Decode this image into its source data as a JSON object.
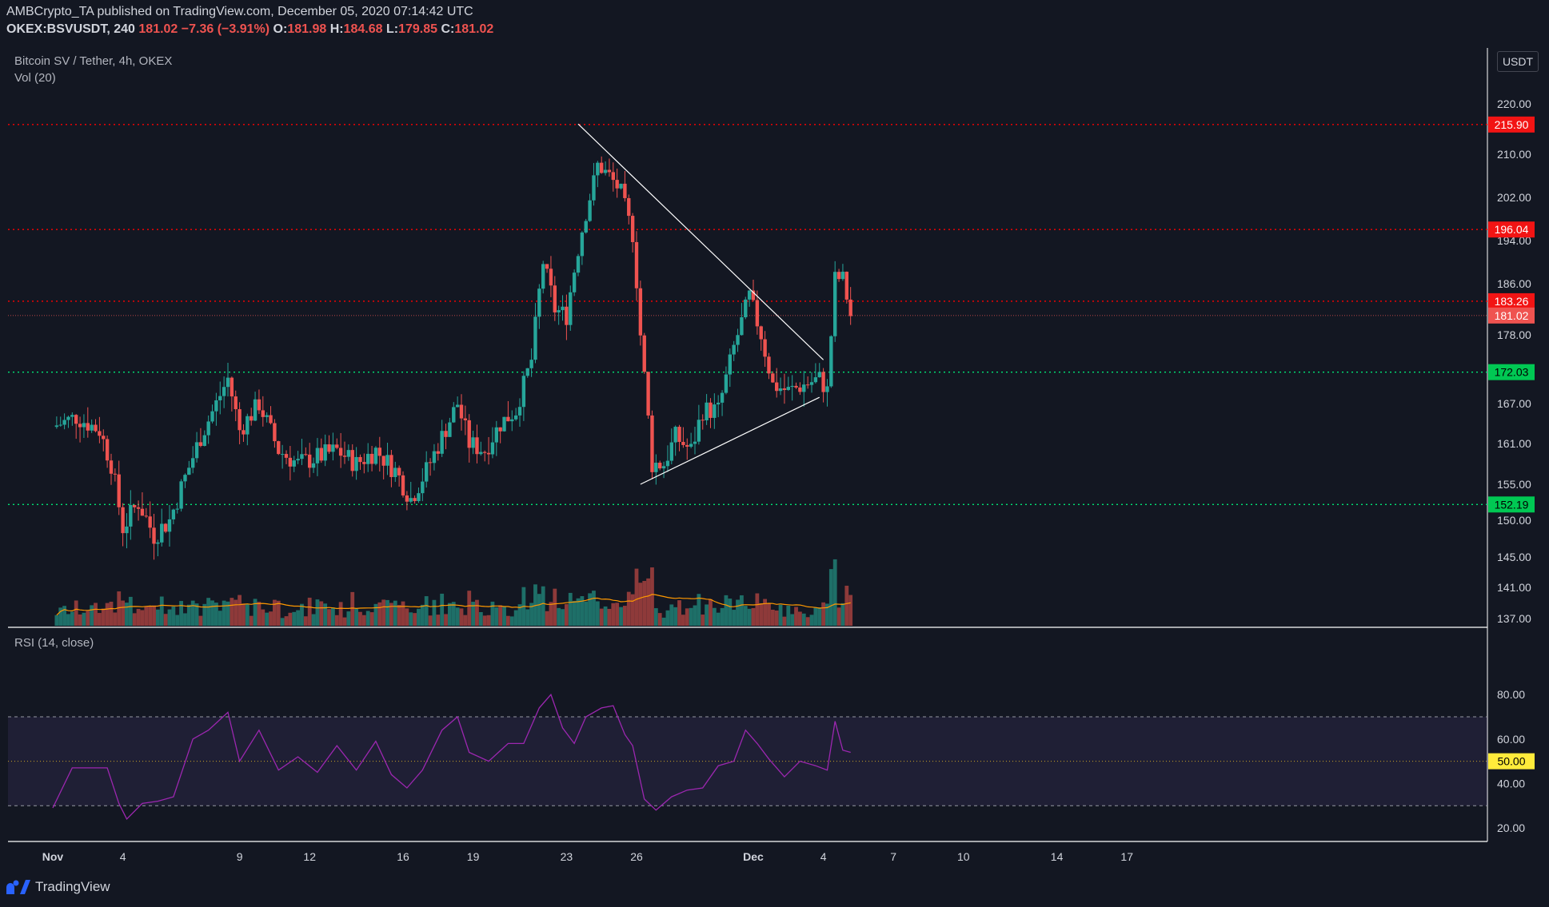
{
  "header": {
    "publisher_line": "AMBCrypto_TA published on TradingView.com, December 05, 2020 07:14:42 UTC",
    "symbol": "OKEX:BSVUSDT, 240",
    "last": "181.02",
    "change": "−7.36 (−3.91%)",
    "o_label": "O:",
    "o": "181.98",
    "h_label": "H:",
    "h": "184.68",
    "l_label": "L:",
    "l": "179.85",
    "c_label": "C:",
    "c": "181.02"
  },
  "legend": {
    "main": "Bitcoin SV / Tether, 4h, OKEX",
    "vol": "Vol (20)",
    "rsi": "RSI (14, close)"
  },
  "currency": "USDT",
  "footer": {
    "brand": "TradingView"
  },
  "colors": {
    "background": "#131722",
    "up": "#26a69a",
    "down": "#ef5350",
    "resistance": "#ff0000",
    "support": "#00e676",
    "rsi_line": "#9c27b0",
    "vol_ma": "#ff9800"
  },
  "chart_data": {
    "type": "candlestick",
    "x_tick_labels": [
      "Nov",
      "4",
      "9",
      "12",
      "16",
      "19",
      "23",
      "26",
      "Dec",
      "4",
      "7",
      "10",
      "14",
      "17"
    ],
    "x_tick_dates": [
      "2020-11-01",
      "2020-11-04",
      "2020-11-09",
      "2020-11-12",
      "2020-11-16",
      "2020-11-19",
      "2020-11-23",
      "2020-11-26",
      "2020-12-01",
      "2020-12-04",
      "2020-12-07",
      "2020-12-10",
      "2020-12-14",
      "2020-12-17"
    ],
    "price_ticks": [
      "220.00",
      "210.00",
      "202.00",
      "194.00",
      "186.00",
      "178.00",
      "167.00",
      "161.00",
      "155.00",
      "150.00",
      "145.00",
      "141.00",
      "137.00"
    ],
    "price_tick_values": [
      220,
      210,
      202,
      194,
      186,
      178,
      167,
      161,
      155,
      150,
      145,
      141,
      137
    ],
    "horizontal_levels": [
      {
        "label": "215.90",
        "value": 215.9,
        "kind": "resistance"
      },
      {
        "label": "196.04",
        "value": 196.04,
        "kind": "resistance"
      },
      {
        "label": "183.26",
        "value": 183.26,
        "kind": "resistance"
      },
      {
        "label": "181.02",
        "value": 181.02,
        "kind": "last"
      },
      {
        "label": "172.03",
        "value": 172.03,
        "kind": "support"
      },
      {
        "label": "152.19",
        "value": 152.19,
        "kind": "support"
      }
    ],
    "trendlines": [
      {
        "from": [
          "2020-11-23T12:00",
          216
        ],
        "to": [
          "2020-12-04T00:00",
          174
        ]
      },
      {
        "from": [
          "2020-11-26T04:00",
          155
        ],
        "to": [
          "2020-12-03T20:00",
          168
        ]
      }
    ],
    "close_path": [
      [
        "2020-11-01T00:00",
        163.5
      ],
      [
        "2020-11-02T00:00",
        165.0
      ],
      [
        "2020-11-03T00:00",
        163.0
      ],
      [
        "2020-11-03T12:00",
        158.0
      ],
      [
        "2020-11-04T00:00",
        149.0
      ],
      [
        "2020-11-04T16:00",
        152.5
      ],
      [
        "2020-11-05T08:00",
        148.0
      ],
      [
        "2020-11-06T00:00",
        150.0
      ],
      [
        "2020-11-06T16:00",
        156.0
      ],
      [
        "2020-11-07T08:00",
        162.0
      ],
      [
        "2020-11-08T00:00",
        167.0
      ],
      [
        "2020-11-08T12:00",
        171.0
      ],
      [
        "2020-11-09T00:00",
        163.0
      ],
      [
        "2020-11-09T20:00",
        167.0
      ],
      [
        "2020-11-10T16:00",
        160.0
      ],
      [
        "2020-11-11T12:00",
        158.0
      ],
      [
        "2020-11-12T08:00",
        159.0
      ],
      [
        "2020-11-13T04:00",
        160.0
      ],
      [
        "2020-11-14T00:00",
        158.0
      ],
      [
        "2020-11-14T20:00",
        160.0
      ],
      [
        "2020-11-15T16:00",
        157.0
      ],
      [
        "2020-11-16T08:00",
        153.0
      ],
      [
        "2020-11-17T00:00",
        157.0
      ],
      [
        "2020-11-17T16:00",
        162.0
      ],
      [
        "2020-11-18T08:00",
        167.0
      ],
      [
        "2020-11-18T20:00",
        161.0
      ],
      [
        "2020-11-19T12:00",
        160.0
      ],
      [
        "2020-11-20T04:00",
        164.0
      ],
      [
        "2020-11-20T20:00",
        166.0
      ],
      [
        "2020-11-21T12:00",
        174.0
      ],
      [
        "2020-11-22T00:00",
        190.0
      ],
      [
        "2020-11-22T12:00",
        182.0
      ],
      [
        "2020-11-23T00:00",
        181.0
      ],
      [
        "2020-11-23T16:00",
        196.0
      ],
      [
        "2020-11-24T08:00",
        208.0
      ],
      [
        "2020-11-24T20:00",
        206.0
      ],
      [
        "2020-11-25T08:00",
        203.0
      ],
      [
        "2020-11-25T20:00",
        195.0
      ],
      [
        "2020-11-26T04:00",
        178.0
      ],
      [
        "2020-11-26T16:00",
        158.0
      ],
      [
        "2020-11-27T04:00",
        158.0
      ],
      [
        "2020-11-27T16:00",
        162.0
      ],
      [
        "2020-11-28T08:00",
        160.0
      ],
      [
        "2020-11-28T20:00",
        166.0
      ],
      [
        "2020-11-29T12:00",
        166.0
      ],
      [
        "2020-11-30T04:00",
        176.0
      ],
      [
        "2020-11-30T20:00",
        184.0
      ],
      [
        "2020-12-01T08:00",
        178.0
      ],
      [
        "2020-12-01T20:00",
        170.0
      ],
      [
        "2020-12-02T12:00",
        169.0
      ],
      [
        "2020-12-03T04:00",
        170.0
      ],
      [
        "2020-12-03T20:00",
        171.0
      ],
      [
        "2020-12-04T04:00",
        169.0
      ],
      [
        "2020-12-04T12:00",
        187.0
      ],
      [
        "2020-12-04T20:00",
        187.0
      ],
      [
        "2020-12-05T04:00",
        181.0
      ]
    ],
    "rsi": {
      "ticks": [
        "80.00",
        "60.00",
        "40.00",
        "20.00"
      ],
      "tick_values": [
        80,
        60,
        40,
        20
      ],
      "upper_band": 70,
      "lower_band": 30,
      "midline_label": "50.00",
      "midline_value": 50,
      "path": [
        [
          "2020-11-01T00:00",
          31
        ],
        [
          "2020-11-01T20:00",
          45
        ],
        [
          "2020-11-02T16:00",
          49
        ],
        [
          "2020-11-03T08:00",
          45
        ],
        [
          "2020-11-03T20:00",
          33
        ],
        [
          "2020-11-04T04:00",
          22
        ],
        [
          "2020-11-04T20:00",
          33
        ],
        [
          "2020-11-05T12:00",
          30
        ],
        [
          "2020-11-06T04:00",
          36
        ],
        [
          "2020-11-07T00:00",
          58
        ],
        [
          "2020-11-07T16:00",
          66
        ],
        [
          "2020-11-08T12:00",
          70
        ],
        [
          "2020-11-09T00:00",
          52
        ],
        [
          "2020-11-09T20:00",
          62
        ],
        [
          "2020-11-10T16:00",
          48
        ],
        [
          "2020-11-11T12:00",
          50
        ],
        [
          "2020-11-12T08:00",
          47
        ],
        [
          "2020-11-13T04:00",
          55
        ],
        [
          "2020-11-14T00:00",
          48
        ],
        [
          "2020-11-14T20:00",
          57
        ],
        [
          "2020-11-15T12:00",
          46
        ],
        [
          "2020-11-16T04:00",
          36
        ],
        [
          "2020-11-16T20:00",
          48
        ],
        [
          "2020-11-17T16:00",
          62
        ],
        [
          "2020-11-18T08:00",
          72
        ],
        [
          "2020-11-18T20:00",
          52
        ],
        [
          "2020-11-19T16:00",
          52
        ],
        [
          "2020-11-20T12:00",
          56
        ],
        [
          "2020-11-21T04:00",
          60
        ],
        [
          "2020-11-21T20:00",
          72
        ],
        [
          "2020-11-22T08:00",
          82
        ],
        [
          "2020-11-22T20:00",
          63
        ],
        [
          "2020-11-23T08:00",
          60
        ],
        [
          "2020-11-23T20:00",
          68
        ],
        [
          "2020-11-24T12:00",
          76
        ],
        [
          "2020-11-25T00:00",
          73
        ],
        [
          "2020-11-25T12:00",
          64
        ],
        [
          "2020-11-25T20:00",
          55
        ],
        [
          "2020-11-26T08:00",
          35
        ],
        [
          "2020-11-26T20:00",
          26
        ],
        [
          "2020-11-27T12:00",
          36
        ],
        [
          "2020-11-28T04:00",
          35
        ],
        [
          "2020-11-28T20:00",
          40
        ],
        [
          "2020-11-29T12:00",
          46
        ],
        [
          "2020-11-30T04:00",
          52
        ],
        [
          "2020-11-30T16:00",
          62
        ],
        [
          "2020-12-01T04:00",
          60
        ],
        [
          "2020-12-01T16:00",
          49
        ],
        [
          "2020-12-02T08:00",
          45
        ],
        [
          "2020-12-03T00:00",
          48
        ],
        [
          "2020-12-03T16:00",
          50
        ],
        [
          "2020-12-04T04:00",
          44
        ],
        [
          "2020-12-04T12:00",
          70
        ],
        [
          "2020-12-04T20:00",
          53
        ],
        [
          "2020-12-05T04:00",
          56
        ]
      ]
    }
  }
}
